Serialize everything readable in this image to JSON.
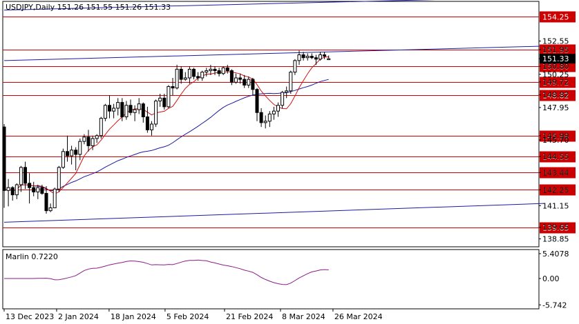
{
  "chart_data": [
    {
      "type": "candlestick",
      "symbol_header": "USDJPY,Daily  151.26 151.55 151.26 151.33",
      "ylim": [
        138.3,
        155.3
      ],
      "y_ticks": [
        "152.55",
        "151.95",
        "151.33",
        "150.80",
        "150.25",
        "149.72",
        "148.82",
        "147.95",
        "145.99",
        "145.70",
        "144.55",
        "143.44",
        "142.25",
        "141.15",
        "139.65",
        "138.85"
      ],
      "x_ticks": [
        "13 Dec 2023",
        "2 Jan 2024",
        "18 Jan 2024",
        "5 Feb 2024",
        "21 Feb 2024",
        "8 Mar 2024",
        "26 Mar 2024"
      ],
      "levels": [
        {
          "value": 154.25,
          "label": "154.25",
          "color": "#cc0000"
        },
        {
          "value": 151.95,
          "label": "151.95",
          "color": "#cc0000"
        },
        {
          "value": 150.8,
          "label": "150.80",
          "color": "#cc0000"
        },
        {
          "value": 149.72,
          "label": "149.72",
          "color": "#cc0000"
        },
        {
          "value": 148.82,
          "label": "148.82",
          "color": "#cc0000"
        },
        {
          "value": 145.99,
          "label": "145.99",
          "color": "#cc0000"
        },
        {
          "value": 144.55,
          "label": "144.55",
          "color": "#cc0000"
        },
        {
          "value": 143.44,
          "label": "143.44",
          "color": "#cc0000"
        },
        {
          "value": 142.25,
          "label": "142.25",
          "color": "#cc0000"
        },
        {
          "value": 139.65,
          "label": "139.65",
          "color": "#cc0000"
        }
      ],
      "current_price": {
        "value": 151.33,
        "label": "151.33"
      },
      "trend_lines": [
        {
          "from": [
            0,
            154.7
          ],
          "to": [
            128,
            155.6
          ],
          "color": "#1a1aa0"
        },
        {
          "from": [
            0,
            151.2
          ],
          "to": [
            128,
            152.2
          ],
          "color": "#1a1aa0"
        },
        {
          "from": [
            0,
            140.0
          ],
          "to": [
            128,
            141.3
          ],
          "color": "#1a1aa0"
        }
      ],
      "candles": [
        [
          146.6,
          146.8,
          141.0,
          142.2
        ],
        [
          142.2,
          143.0,
          141.1,
          142.4
        ],
        [
          142.4,
          142.5,
          141.5,
          141.9
        ],
        [
          141.9,
          142.7,
          141.6,
          142.6
        ],
        [
          142.6,
          143.9,
          142.1,
          143.8
        ],
        [
          143.8,
          144.2,
          142.3,
          142.7
        ],
        [
          142.7,
          143.4,
          141.3,
          142.4
        ],
        [
          142.4,
          142.8,
          141.8,
          142.1
        ],
        [
          142.1,
          142.6,
          141.6,
          142.4
        ],
        [
          142.4,
          142.6,
          141.9,
          142.0
        ],
        [
          142.0,
          142.5,
          140.6,
          140.8
        ],
        [
          140.8,
          141.3,
          140.7,
          141.0
        ],
        [
          141.0,
          142.4,
          141.0,
          142.3
        ],
        [
          142.3,
          143.9,
          142.1,
          143.8
        ],
        [
          143.8,
          145.1,
          143.7,
          144.9
        ],
        [
          144.9,
          146.0,
          144.2,
          144.6
        ],
        [
          144.6,
          145.3,
          144.0,
          145.0
        ],
        [
          145.0,
          145.2,
          143.6,
          144.7
        ],
        [
          144.7,
          145.8,
          144.3,
          145.6
        ],
        [
          145.6,
          146.1,
          145.4,
          145.9
        ],
        [
          145.9,
          146.4,
          144.9,
          145.3
        ],
        [
          145.3,
          146.0,
          145.0,
          145.8
        ],
        [
          145.8,
          146.1,
          145.5,
          146.0
        ],
        [
          146.0,
          147.3,
          145.8,
          147.2
        ],
        [
          147.2,
          148.2,
          147.0,
          148.1
        ],
        [
          148.1,
          148.8,
          147.2,
          147.7
        ],
        [
          147.7,
          148.2,
          147.2,
          147.9
        ],
        [
          147.9,
          148.6,
          147.4,
          148.3
        ],
        [
          148.3,
          148.6,
          147.0,
          147.3
        ],
        [
          147.3,
          148.4,
          147.1,
          148.1
        ],
        [
          148.1,
          148.5,
          147.4,
          147.6
        ],
        [
          147.6,
          148.1,
          147.0,
          147.8
        ],
        [
          147.8,
          148.6,
          147.5,
          148.2
        ],
        [
          148.2,
          148.3,
          146.9,
          147.3
        ],
        [
          147.3,
          148.0,
          146.2,
          146.4
        ],
        [
          146.4,
          147.0,
          146.0,
          146.8
        ],
        [
          146.8,
          148.5,
          146.6,
          148.4
        ],
        [
          148.4,
          148.9,
          148.0,
          148.6
        ],
        [
          148.6,
          148.9,
          147.8,
          148.0
        ],
        [
          148.0,
          149.5,
          147.9,
          149.4
        ],
        [
          149.4,
          150.0,
          148.8,
          149.3
        ],
        [
          149.3,
          150.9,
          149.2,
          150.6
        ],
        [
          150.6,
          150.8,
          149.6,
          149.9
        ],
        [
          149.9,
          150.4,
          149.8,
          150.0
        ],
        [
          150.0,
          150.8,
          149.6,
          150.6
        ],
        [
          150.6,
          150.7,
          149.9,
          150.1
        ],
        [
          150.1,
          150.4,
          149.8,
          150.0
        ],
        [
          150.0,
          150.5,
          149.8,
          150.4
        ],
        [
          150.4,
          150.7,
          150.1,
          150.5
        ],
        [
          150.5,
          150.9,
          150.2,
          150.6
        ],
        [
          150.6,
          150.8,
          150.2,
          150.5
        ],
        [
          150.5,
          150.7,
          150.1,
          150.3
        ],
        [
          150.3,
          150.8,
          150.2,
          150.7
        ],
        [
          150.7,
          150.9,
          150.3,
          150.5
        ],
        [
          150.5,
          150.6,
          149.5,
          149.7
        ],
        [
          149.7,
          150.3,
          149.6,
          150.0
        ],
        [
          150.0,
          150.3,
          149.6,
          149.9
        ],
        [
          149.9,
          150.2,
          149.3,
          149.5
        ],
        [
          149.5,
          150.1,
          149.3,
          149.9
        ],
        [
          149.9,
          150.0,
          148.8,
          149.2
        ],
        [
          149.2,
          149.3,
          147.0,
          147.6
        ],
        [
          147.6,
          147.9,
          146.6,
          146.9
        ],
        [
          146.9,
          147.4,
          146.5,
          147.0
        ],
        [
          147.0,
          147.7,
          146.6,
          147.5
        ],
        [
          147.5,
          148.0,
          147.1,
          147.7
        ],
        [
          147.7,
          148.3,
          147.3,
          148.1
        ],
        [
          148.1,
          149.1,
          147.9,
          149.0
        ],
        [
          149.0,
          149.4,
          148.6,
          149.1
        ],
        [
          149.1,
          150.5,
          148.9,
          150.4
        ],
        [
          150.4,
          151.3,
          150.2,
          151.2
        ],
        [
          151.2,
          151.9,
          150.9,
          151.6
        ],
        [
          151.6,
          151.8,
          151.2,
          151.4
        ],
        [
          151.4,
          151.7,
          151.2,
          151.5
        ],
        [
          151.5,
          151.7,
          151.3,
          151.4
        ],
        [
          151.4,
          151.6,
          150.9,
          151.3
        ],
        [
          151.3,
          151.8,
          151.2,
          151.6
        ],
        [
          151.6,
          151.8,
          151.3,
          151.5
        ],
        [
          151.26,
          151.55,
          151.26,
          151.33
        ]
      ],
      "indicator": {
        "name": "Marlin 0.7220",
        "y_ticks": [
          "5.4078",
          "0.00",
          "-5.742"
        ],
        "ylim": [
          -6.6,
          6.3
        ],
        "color": "#8b1a8b"
      }
    }
  ]
}
